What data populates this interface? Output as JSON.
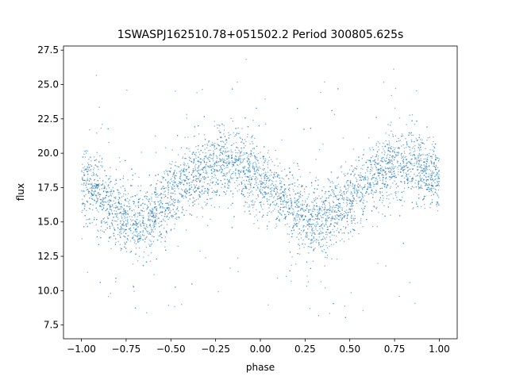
{
  "chart_data": {
    "type": "scatter",
    "title": "1SWASPJ162510.78+051502.2 Period 300805.625s",
    "xlabel": "phase",
    "ylabel": "flux",
    "xlim": [
      -1.1,
      1.1
    ],
    "ylim": [
      6.5,
      27.8
    ],
    "xticks": [
      -1.0,
      -0.75,
      -0.5,
      -0.25,
      0.0,
      0.25,
      0.5,
      0.75,
      1.0
    ],
    "xtick_labels": [
      "−1.00",
      "−0.75",
      "−0.50",
      "−0.25",
      "0.00",
      "0.25",
      "0.50",
      "0.75",
      "1.00"
    ],
    "yticks": [
      7.5,
      10.0,
      12.5,
      15.0,
      17.5,
      20.0,
      22.5,
      25.0,
      27.5
    ],
    "ytick_labels": [
      "7.5",
      "10.0",
      "12.5",
      "15.0",
      "17.5",
      "20.0",
      "22.5",
      "25.0",
      "27.5"
    ],
    "grid": false,
    "legend": "none",
    "marker_color": "#1f77b4",
    "series": [
      {
        "phase": [
          -1.0,
          -0.95,
          -0.9,
          -0.85,
          -0.8,
          -0.75,
          -0.7,
          -0.65,
          -0.6,
          -0.55,
          -0.5,
          -0.45,
          -0.4,
          -0.35,
          -0.3,
          -0.25,
          -0.2,
          -0.15,
          -0.1,
          -0.05,
          0.0,
          0.05,
          0.1,
          0.15,
          0.2,
          0.25,
          0.3,
          0.35,
          0.4,
          0.45,
          0.5,
          0.55,
          0.6,
          0.65,
          0.7,
          0.75,
          0.8,
          0.85,
          0.9,
          0.95,
          1.0
        ],
        "flux_mean": [
          18.0,
          17.6,
          17.0,
          16.3,
          15.8,
          15.3,
          15.0,
          15.1,
          15.6,
          16.2,
          16.8,
          17.4,
          18.0,
          18.4,
          18.8,
          19.2,
          19.4,
          19.2,
          18.9,
          18.5,
          18.0,
          17.6,
          17.0,
          16.3,
          15.8,
          15.3,
          15.0,
          15.1,
          15.6,
          16.2,
          16.8,
          17.4,
          18.0,
          18.4,
          18.8,
          19.2,
          19.4,
          19.2,
          18.9,
          18.5,
          18.0
        ]
      }
    ]
  }
}
